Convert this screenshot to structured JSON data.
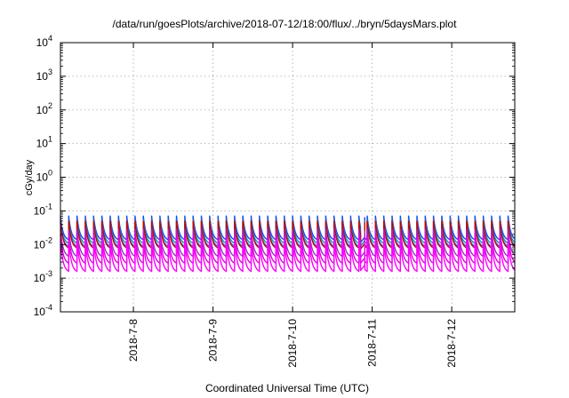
{
  "chart_data": {
    "type": "line",
    "title": "/data/run/goesPlots/archive/2018-07-12/18:00/flux/../bryn/5daysMars.plot",
    "xlabel": "Coordinated Universal Time (UTC)",
    "ylabel": "cGy/day",
    "x_scale": "date",
    "xlim": [
      "2018-07-07T02:00",
      "2018-07-12T19:00"
    ],
    "x_ticks": [
      "2018-7-8",
      "2018-7-9",
      "2018-7-10",
      "2018-7-11",
      "2018-7-12"
    ],
    "y_scale": "log",
    "ylim": [
      0.0001,
      10000
    ],
    "y_ticks": [
      {
        "base": "10",
        "exp": "-4"
      },
      {
        "base": "10",
        "exp": "-3"
      },
      {
        "base": "10",
        "exp": "-2"
      },
      {
        "base": "10",
        "exp": "-1"
      },
      {
        "base": "10",
        "exp": "0"
      },
      {
        "base": "10",
        "exp": "1"
      },
      {
        "base": "10",
        "exp": "2"
      },
      {
        "base": "10",
        "exp": "3"
      },
      {
        "base": "10",
        "exp": "4"
      }
    ],
    "grid": true,
    "legend": "none",
    "pattern": {
      "description_source": "periodic sawtooth series (peaks rise sharply then decay)",
      "period_hours": 2.5,
      "gap_start": "2018-07-10T20:30",
      "gap_end": "2018-07-10T21:45",
      "dip_value": 0.0009
    },
    "series": [
      {
        "color": "#1f3fff",
        "peak": 0.07,
        "trough": 0.014
      },
      {
        "color": "#00a0a0",
        "peak": 0.055,
        "trough": 0.011
      },
      {
        "color": "#3070ff",
        "peak": 0.045,
        "trough": 0.009
      },
      {
        "color": "#cc0000",
        "peak": 0.05,
        "trough": 0.008
      },
      {
        "color": "#9b30c0",
        "peak": 0.028,
        "trough": 0.0045
      },
      {
        "color": "#e000e0",
        "peak": 0.02,
        "trough": 0.0028
      },
      {
        "color": "#ff00ff",
        "peak": 0.013,
        "trough": 0.0016
      }
    ]
  }
}
